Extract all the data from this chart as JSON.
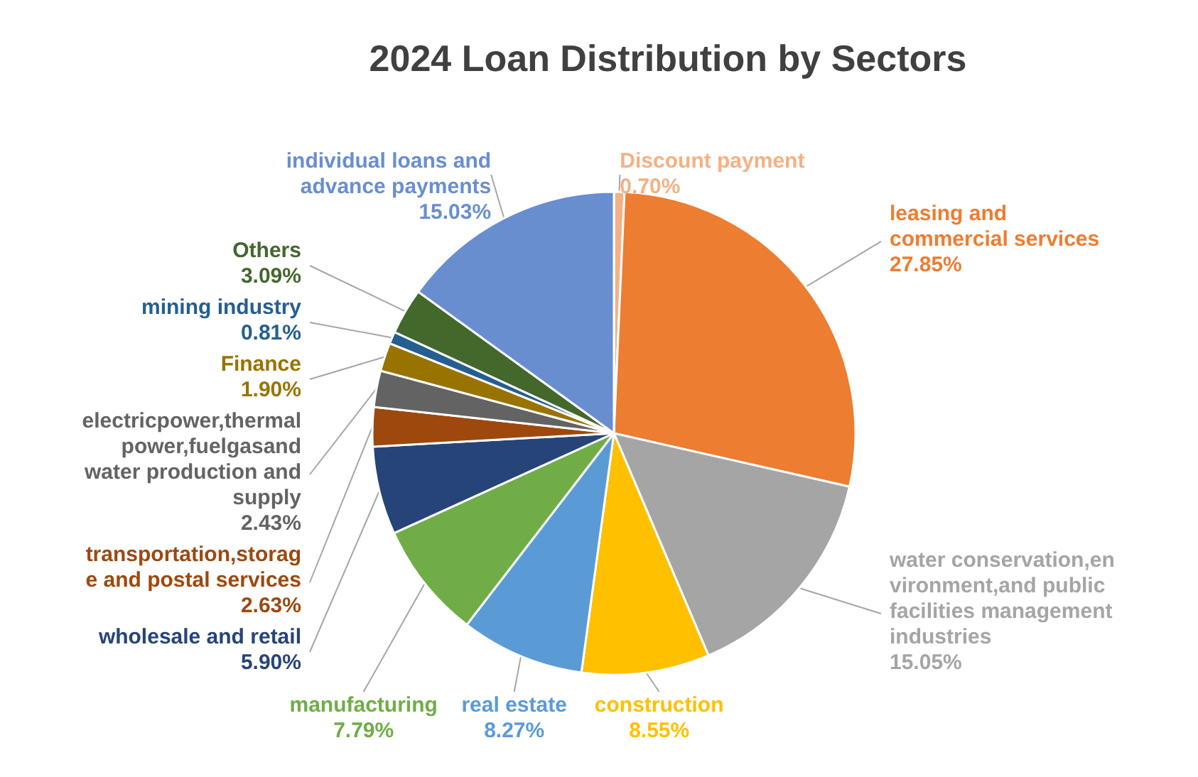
{
  "chart_data": {
    "type": "pie",
    "title": "2024  Loan Distribution by Sectors",
    "categories": [
      "Discount payment",
      "leasing and commercial services",
      "water conservation,environment,and public facilities management industries",
      "construction",
      "real estate",
      "manufacturing",
      "wholesale and retail",
      "transportation,storage and postal services",
      "electricpower,thermal power,fuelgasand water production and supply",
      "Finance",
      "mining industry",
      "Others",
      "individual loans and advance payments"
    ],
    "values": [
      0.7,
      27.85,
      15.05,
      8.55,
      8.27,
      7.79,
      5.9,
      2.63,
      2.43,
      1.9,
      0.81,
      3.09,
      15.03
    ],
    "value_labels": [
      "0.70%",
      "27.85%",
      "15.05%",
      "8.55%",
      "8.27%",
      "7.79%",
      "5.90%",
      "2.63%",
      "2.43%",
      "1.90%",
      "0.81%",
      "3.09%",
      "15.03%"
    ],
    "colors": [
      "#f4b183",
      "#ed7d31",
      "#a5a5a5",
      "#ffc000",
      "#5b9bd5",
      "#70ad47",
      "#264478",
      "#9e480e",
      "#636363",
      "#997300",
      "#255e91",
      "#43682b",
      "#698ed0"
    ]
  }
}
